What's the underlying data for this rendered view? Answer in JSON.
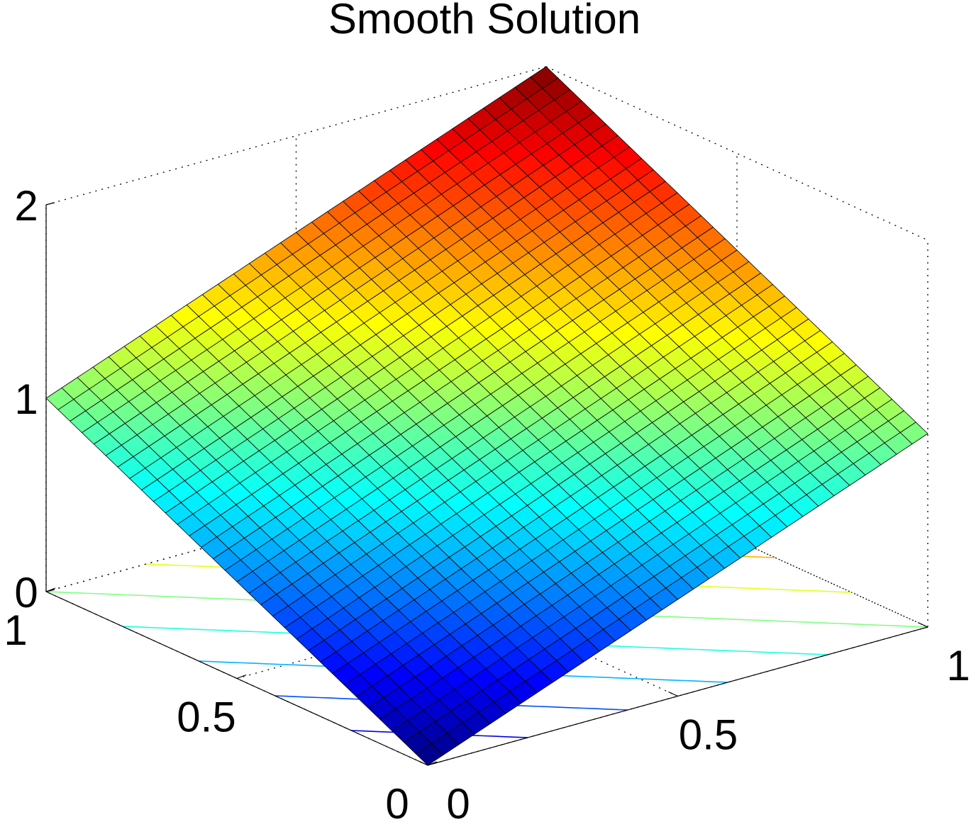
{
  "chart_data": {
    "type": "surface",
    "title": "Smooth Solution",
    "xlabel": "",
    "ylabel": "",
    "zlabel": "",
    "xlim": [
      0,
      1
    ],
    "ylim": [
      0,
      1
    ],
    "zlim": [
      0,
      2
    ],
    "x_ticks": [
      "0",
      "0.5",
      "1"
    ],
    "y_ticks": [
      "0",
      "0.5",
      "1"
    ],
    "z_ticks": [
      "0",
      "1",
      "2"
    ],
    "grid": true,
    "colormap": "jet",
    "grid_size": 33,
    "surface_corner_values": {
      "z_at_x0_y0": 0.0,
      "z_at_x1_y0": 1.0,
      "z_at_x0_y1": 1.0,
      "z_at_x1_y1": 2.0
    },
    "contour_projection": true,
    "contour_levels": [
      0.2,
      0.4,
      0.6,
      0.8,
      1.0,
      1.2,
      1.4
    ],
    "edge_color": "#000000",
    "box_grid_color": "#000000"
  }
}
